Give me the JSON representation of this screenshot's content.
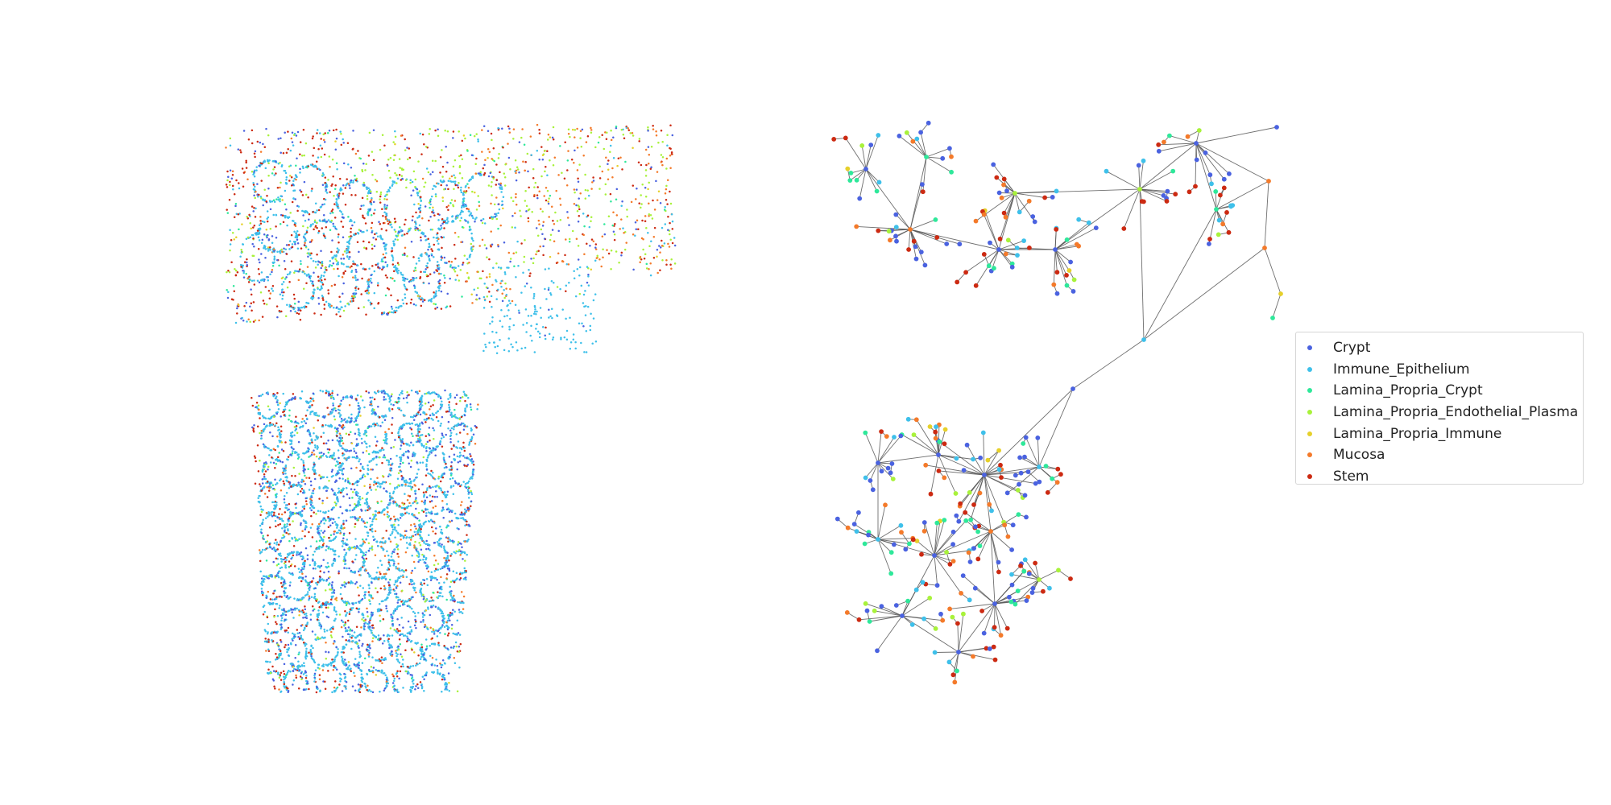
{
  "chart_data": [
    {
      "type": "scatter",
      "title": "",
      "xlabel": "",
      "ylabel": "",
      "axes": "off",
      "grid": false,
      "legend": "none",
      "point_size": "tiny",
      "series": [
        {
          "name": "Crypt",
          "color": "#4a62e0",
          "approx_count": 1300
        },
        {
          "name": "Immune_Epithelium",
          "color": "#3ec0ea",
          "approx_count": 4200
        },
        {
          "name": "Lamina_Propria_Crypt",
          "color": "#2ee89a",
          "approx_count": 350
        },
        {
          "name": "Lamina_Propria_Endothelial_Plasma",
          "color": "#a8f23a",
          "approx_count": 900
        },
        {
          "name": "Lamina_Propria_Immune",
          "color": "#e6d02a",
          "approx_count": 120
        },
        {
          "name": "Mucosa",
          "color": "#f47a2a",
          "approx_count": 650
        },
        {
          "name": "Stem",
          "color": "#cc2a12",
          "approx_count": 1300
        }
      ]
    },
    {
      "type": "scatter",
      "subtype": "network-graph",
      "title": "",
      "axes": "off",
      "grid": false,
      "legend": "right",
      "edge_color": "#555555",
      "approx_nodes": 420,
      "series": [
        {
          "name": "Crypt",
          "color": "#4a62e0"
        },
        {
          "name": "Immune_Epithelium",
          "color": "#3ec0ea"
        },
        {
          "name": "Lamina_Propria_Crypt",
          "color": "#2ee89a"
        },
        {
          "name": "Lamina_Propria_Endothelial_Plasma",
          "color": "#a8f23a"
        },
        {
          "name": "Lamina_Propria_Immune",
          "color": "#e6d02a"
        },
        {
          "name": "Mucosa",
          "color": "#f47a2a"
        },
        {
          "name": "Stem",
          "color": "#cc2a12"
        }
      ]
    }
  ],
  "legend": {
    "items": [
      {
        "label": "Crypt",
        "color": "#4a62e0"
      },
      {
        "label": "Immune_Epithelium",
        "color": "#3ec0ea"
      },
      {
        "label": "Lamina_Propria_Crypt",
        "color": "#2ee89a"
      },
      {
        "label": "Lamina_Propria_Endothelial_Plasma",
        "color": "#a8f23a"
      },
      {
        "label": "Lamina_Propria_Immune",
        "color": "#e6d02a"
      },
      {
        "label": "Mucosa",
        "color": "#f47a2a"
      },
      {
        "label": "Stem",
        "color": "#cc2a12"
      }
    ]
  }
}
